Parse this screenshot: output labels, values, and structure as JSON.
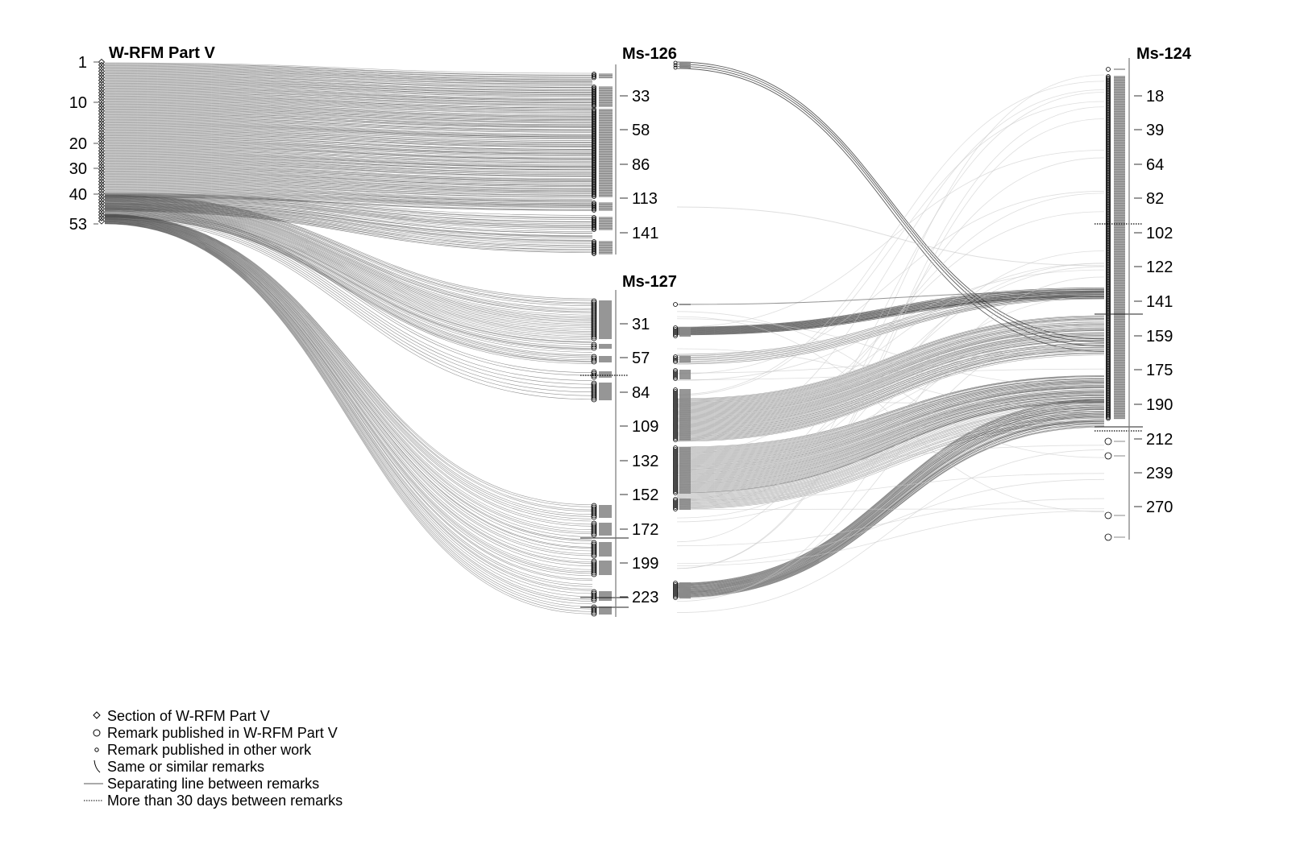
{
  "axes": {
    "wrfm": {
      "title": "W-RFM Part V",
      "ticks": [
        "1",
        "10",
        "20",
        "30",
        "40",
        "53"
      ]
    },
    "ms126": {
      "title": "Ms-126",
      "ticks": [
        "33",
        "58",
        "86",
        "113",
        "141"
      ]
    },
    "ms127": {
      "title": "Ms-127",
      "ticks": [
        "31",
        "57",
        "84",
        "109",
        "132",
        "152",
        "172",
        "199",
        "223"
      ]
    },
    "ms124": {
      "title": "Ms-124",
      "ticks": [
        "18",
        "39",
        "64",
        "82",
        "102",
        "122",
        "141",
        "159",
        "175",
        "190",
        "212",
        "239",
        "270"
      ]
    }
  },
  "legend": [
    {
      "symbol": "diamond",
      "label": "Section of W-RFM Part V"
    },
    {
      "symbol": "large-circle",
      "label": "Remark published in W-RFM Part V"
    },
    {
      "symbol": "small-circle",
      "label": "Remark published in other work"
    },
    {
      "symbol": "curve",
      "label": "Same or similar remarks"
    },
    {
      "symbol": "solid-line",
      "label": "Separating line between remarks"
    },
    {
      "symbol": "dotted-line",
      "label": "More than 30 days between remarks"
    }
  ],
  "colors": {
    "link": "#444444",
    "faint_link": "#c8c8c8",
    "bar": "#8a8a8a",
    "axis": "#777777"
  }
}
